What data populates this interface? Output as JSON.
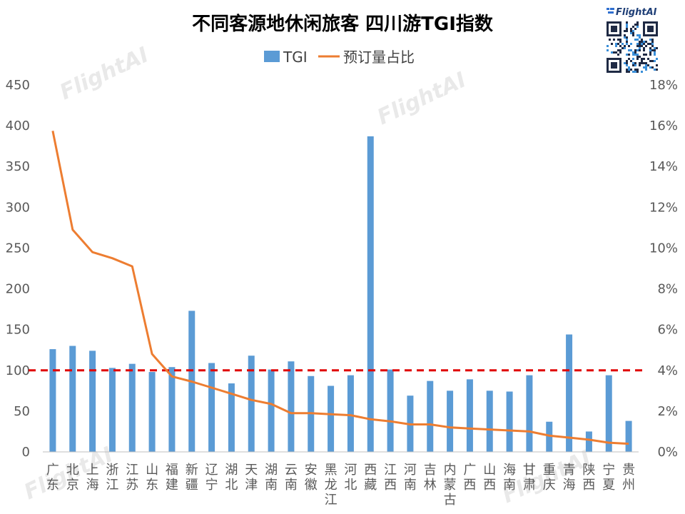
{
  "chart_data": {
    "type": "bar",
    "title": "不同客源地休闲旅客 四川游TGI指数",
    "categories": [
      "广东",
      "北京",
      "上海",
      "浙江",
      "江苏",
      "山东",
      "福建",
      "新疆",
      "辽宁",
      "湖北",
      "天津",
      "湖南",
      "云南",
      "安徽",
      "黑龙江",
      "河北",
      "西藏",
      "江西",
      "河南",
      "吉林",
      "内蒙古",
      "广西",
      "山西",
      "海南",
      "甘肃",
      "重庆",
      "青海",
      "陕西",
      "宁夏",
      "贵州"
    ],
    "series": [
      {
        "name": "TGI",
        "type": "bar",
        "axis": "left",
        "color": "#5b9bd5",
        "values": [
          126,
          130,
          124,
          103,
          108,
          98,
          104,
          173,
          109,
          84,
          118,
          101,
          111,
          93,
          81,
          94,
          387,
          101,
          69,
          87,
          75,
          89,
          75,
          74,
          94,
          37,
          144,
          25,
          94,
          38
        ]
      },
      {
        "name": "预订量占比",
        "type": "line",
        "axis": "right",
        "color": "#ed7d31",
        "values": [
          15.75,
          10.9,
          9.8,
          9.5,
          9.1,
          4.8,
          3.7,
          3.45,
          3.15,
          2.85,
          2.55,
          2.35,
          1.9,
          1.9,
          1.85,
          1.8,
          1.6,
          1.5,
          1.35,
          1.35,
          1.2,
          1.15,
          1.1,
          1.05,
          1.0,
          0.8,
          0.7,
          0.6,
          0.45,
          0.4
        ]
      }
    ],
    "left_axis": {
      "ticks": [
        "450",
        "400",
        "350",
        "300",
        "250",
        "200",
        "150",
        "100",
        "50",
        "0"
      ],
      "ylim": [
        0,
        450
      ]
    },
    "right_axis": {
      "ticks": [
        "18%",
        "16%",
        "14%",
        "12%",
        "10%",
        "8%",
        "6%",
        "4%",
        "2%",
        "0%"
      ],
      "ylim": [
        0,
        18
      ]
    },
    "reference_line": {
      "value": 100,
      "axis": "left",
      "color": "#e00000",
      "style": "dashed"
    },
    "legend_position": "top-center",
    "grid": false
  },
  "logo": {
    "text": "FlightAI"
  },
  "watermark": {
    "text": "FlightAI"
  },
  "colors": {
    "bar": "#5b9bd5",
    "line": "#ed7d31",
    "reference": "#e00000"
  }
}
